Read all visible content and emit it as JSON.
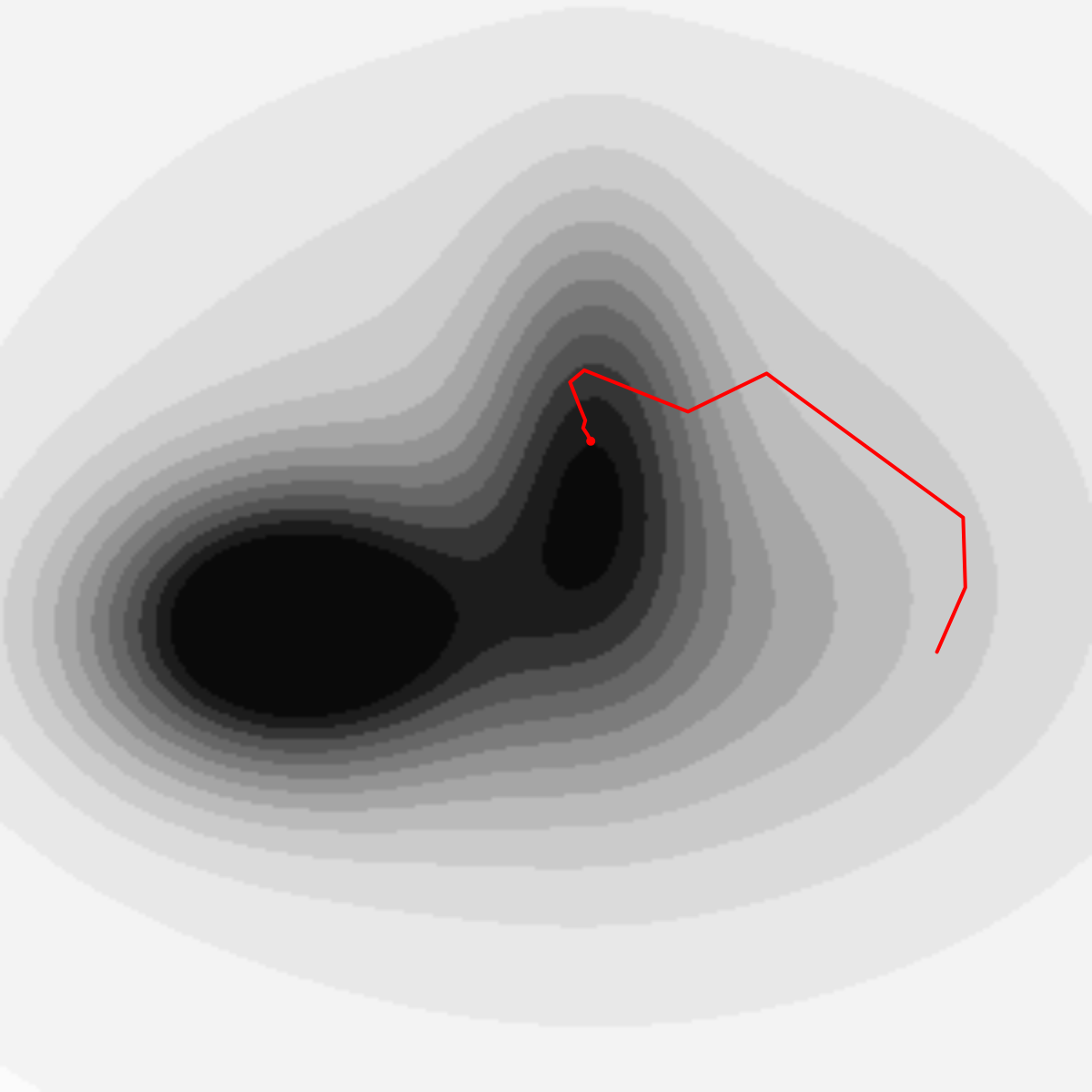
{
  "chart_data": {
    "type": "contour",
    "title": "",
    "xlabel": "",
    "ylabel": "",
    "xlim": [
      0,
      1
    ],
    "ylim": [
      0,
      1
    ],
    "grid": false,
    "legend": "none",
    "colormap": [
      "#fbfbfb",
      "#f3f3f3",
      "#e8e8e8",
      "#dbdbdb",
      "#cbcbcb",
      "#bbbbbb",
      "#a6a6a6",
      "#939393",
      "#7c7c7c",
      "#676767",
      "#535353",
      "#353535",
      "#1c1c1c",
      "#0a0a0a"
    ],
    "path_color": "#ff0000",
    "surface": {
      "baseline": 1.0,
      "wells": [
        {
          "x": 0.25,
          "y": 0.425,
          "sx": 0.12,
          "sy": 0.09,
          "depth": 0.58
        },
        {
          "x": 0.545,
          "y": 0.6,
          "sx": 0.07,
          "sy": 0.14,
          "depth": 0.34
        },
        {
          "x": 0.48,
          "y": 0.42,
          "sx": 0.24,
          "sy": 0.12,
          "depth": 0.18
        },
        {
          "x": 0.55,
          "y": 0.52,
          "sx": 0.38,
          "sy": 0.3,
          "depth": 0.22
        }
      ],
      "levels": [
        0.98,
        0.93,
        0.88,
        0.83,
        0.78,
        0.73,
        0.68,
        0.63,
        0.58,
        0.53,
        0.48,
        0.43,
        0.38
      ]
    },
    "optimizer_path": {
      "x": [
        0.858,
        0.884,
        0.882,
        0.702,
        0.63,
        0.535,
        0.522,
        0.531,
        0.536,
        0.534,
        0.538,
        0.541
      ],
      "y": [
        0.403,
        0.462,
        0.526,
        0.658,
        0.623,
        0.661,
        0.65,
        0.627,
        0.615,
        0.608,
        0.602,
        0.596
      ]
    }
  }
}
